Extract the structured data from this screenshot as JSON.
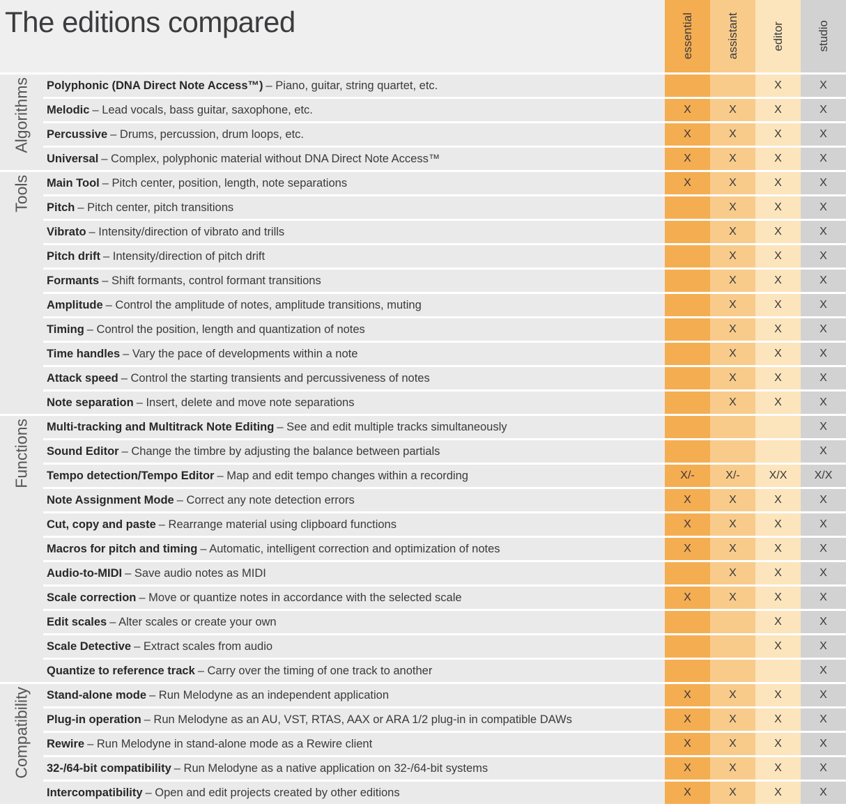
{
  "title": "The editions compared",
  "separator": "–",
  "check_mark": "X",
  "columns": [
    {
      "label": "essential",
      "color": "#f5ad52"
    },
    {
      "label": "assistant",
      "color": "#f8cb8b"
    },
    {
      "label": "editor",
      "color": "#fce4bc"
    },
    {
      "label": "studio",
      "color": "#d2d2d2"
    }
  ],
  "sections": [
    {
      "label": "Algorithms",
      "rows": [
        {
          "name": "Polyphonic (DNA Direct Note Access™)",
          "desc": "Piano, guitar, string quartet, etc.",
          "values": [
            "",
            "",
            "X",
            "X"
          ]
        },
        {
          "name": "Melodic",
          "desc": "Lead vocals, bass guitar, saxophone, etc.",
          "values": [
            "X",
            "X",
            "X",
            "X"
          ]
        },
        {
          "name": "Percussive",
          "desc": "Drums, percussion, drum loops, etc.",
          "values": [
            "X",
            "X",
            "X",
            "X"
          ]
        },
        {
          "name": "Universal",
          "desc": "Complex, polyphonic material without DNA Direct Note Access™",
          "values": [
            "X",
            "X",
            "X",
            "X"
          ]
        }
      ]
    },
    {
      "label": "Tools",
      "rows": [
        {
          "name": "Main Tool",
          "desc": "Pitch center, position, length, note separations",
          "values": [
            "X",
            "X",
            "X",
            "X"
          ]
        },
        {
          "name": "Pitch",
          "desc": "Pitch center, pitch transitions",
          "values": [
            "",
            "X",
            "X",
            "X"
          ]
        },
        {
          "name": "Vibrato",
          "desc": "Intensity/direction of vibrato and trills",
          "values": [
            "",
            "X",
            "X",
            "X"
          ]
        },
        {
          "name": "Pitch drift",
          "desc": "Intensity/direction of pitch drift",
          "values": [
            "",
            "X",
            "X",
            "X"
          ]
        },
        {
          "name": "Formants",
          "desc": "Shift formants, control formant transitions",
          "values": [
            "",
            "X",
            "X",
            "X"
          ]
        },
        {
          "name": "Amplitude",
          "desc": "Control the amplitude of notes, amplitude transitions, muting",
          "values": [
            "",
            "X",
            "X",
            "X"
          ]
        },
        {
          "name": "Timing",
          "desc": "Control the position, length and quantization of notes",
          "values": [
            "",
            "X",
            "X",
            "X"
          ]
        },
        {
          "name": "Time handles",
          "desc": "Vary the pace of developments within a note",
          "values": [
            "",
            "X",
            "X",
            "X"
          ]
        },
        {
          "name": "Attack speed",
          "desc": "Control the starting transients and percussiveness of notes",
          "values": [
            "",
            "X",
            "X",
            "X"
          ]
        },
        {
          "name": "Note separation",
          "desc": "Insert, delete and move note separations",
          "values": [
            "",
            "X",
            "X",
            "X"
          ]
        }
      ]
    },
    {
      "label": "Functions",
      "rows": [
        {
          "name": "Multi-tracking and Multitrack Note Editing",
          "desc": "See and edit multiple tracks simultaneously",
          "values": [
            "",
            "",
            "",
            "X"
          ]
        },
        {
          "name": "Sound Editor",
          "desc": "Change the timbre by adjusting the balance between partials",
          "values": [
            "",
            "",
            "",
            "X"
          ]
        },
        {
          "name": "Tempo detection/Tempo Editor",
          "desc": "Map and edit tempo changes within a recording",
          "values": [
            "X/-",
            "X/-",
            "X/X",
            "X/X"
          ]
        },
        {
          "name": "Note Assignment Mode",
          "desc": "Correct any note detection errors",
          "values": [
            "X",
            "X",
            "X",
            "X"
          ]
        },
        {
          "name": "Cut, copy and paste",
          "desc": "Rearrange material using clipboard functions",
          "values": [
            "X",
            "X",
            "X",
            "X"
          ]
        },
        {
          "name": "Macros for pitch and timing",
          "desc": "Automatic, intelligent correction and optimization of notes",
          "values": [
            "X",
            "X",
            "X",
            "X"
          ]
        },
        {
          "name": "Audio-to-MIDI",
          "desc": "Save audio notes as MIDI",
          "values": [
            "",
            "X",
            "X",
            "X"
          ]
        },
        {
          "name": "Scale correction",
          "desc": "Move or quantize notes in accordance with the selected scale",
          "values": [
            "X",
            "X",
            "X",
            "X"
          ]
        },
        {
          "name": "Edit scales",
          "desc": "Alter scales or create your own",
          "values": [
            "",
            "",
            "X",
            "X"
          ]
        },
        {
          "name": "Scale Detective",
          "desc": "Extract scales from audio",
          "values": [
            "",
            "",
            "X",
            "X"
          ]
        },
        {
          "name": "Quantize to reference track",
          "desc": "Carry over the timing of one track to another",
          "values": [
            "",
            "",
            "",
            "X"
          ]
        }
      ]
    },
    {
      "label": "Compatibility",
      "rows": [
        {
          "name": "Stand-alone mode",
          "desc": "Run Melodyne as an independent application",
          "values": [
            "X",
            "X",
            "X",
            "X"
          ]
        },
        {
          "name": "Plug-in operation",
          "desc": "Run Melodyne as an AU, VST, RTAS, AAX or ARA 1/2 plug-in in compatible DAWs",
          "values": [
            "X",
            "X",
            "X",
            "X"
          ]
        },
        {
          "name": "Rewire",
          "desc": "Run Melodyne in stand-alone mode as a Rewire client",
          "values": [
            "X",
            "X",
            "X",
            "X"
          ]
        },
        {
          "name": "32-/64-bit compatibility",
          "desc": "Run Melodyne as a native application on 32-/64-bit systems",
          "values": [
            "X",
            "X",
            "X",
            "X"
          ]
        },
        {
          "name": "Intercompatibility",
          "desc": "Open and edit projects created by other editions",
          "values": [
            "X",
            "X",
            "X",
            "X"
          ]
        }
      ]
    }
  ]
}
